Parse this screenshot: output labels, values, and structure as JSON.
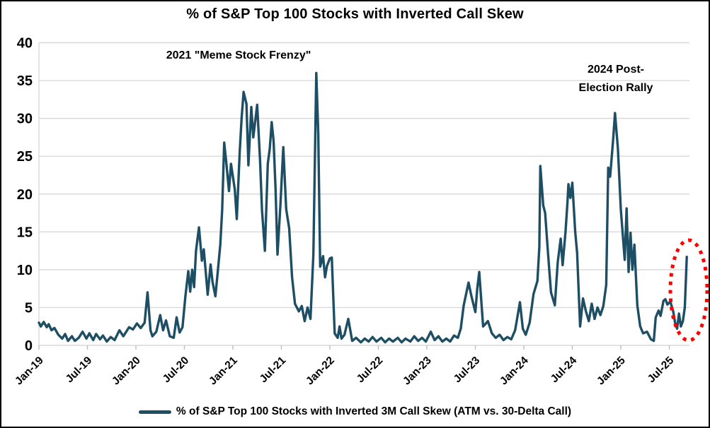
{
  "window": {
    "background": "#FFFFFF",
    "border_color": "#000000"
  },
  "chart_data": {
    "type": "line",
    "title": "% of S&P Top 100 Stocks with Inverted Call Skew",
    "xlabel": "",
    "ylabel": "",
    "ylim": [
      0,
      40
    ],
    "xlim": [
      2019.0,
      2025.71
    ],
    "grid": "horizontal",
    "legend_position": "bottom",
    "colors": {
      "line": "#1D4E63",
      "gridline": "#D9D9D9",
      "tick": "#BFBFBF",
      "text": "#000000",
      "annotation_circle": "#FF0000"
    },
    "y_ticks": [
      0,
      5,
      10,
      15,
      20,
      25,
      30,
      35,
      40
    ],
    "x_ticks": [
      2019.0,
      2019.5,
      2020.0,
      2020.5,
      2021.0,
      2021.5,
      2022.0,
      2022.5,
      2023.0,
      2023.5,
      2024.0,
      2024.5,
      2025.0,
      2025.5
    ],
    "x_ticklabels": [
      "Jan-19",
      "Jul-19",
      "Jan-20",
      "Jul-20",
      "Jan-21",
      "Jul-21",
      "Jan-22",
      "Jul-22",
      "Jan-23",
      "Jul-23",
      "Jan-24",
      "Jul-24",
      "Jan-25",
      "Jul-25"
    ],
    "annotations": [
      {
        "id": "meme-stock",
        "text": "2021 \"Meme Stock Frenzy\""
      },
      {
        "id": "post-election",
        "lines": [
          "2024 Post-",
          "Election Rally"
        ]
      },
      {
        "id": "current-spike-circle",
        "shape": "dotted-ellipse",
        "color": "#FF0000",
        "marks": "final Sep-2025 spike"
      }
    ],
    "series": [
      {
        "name": "% of S&P Top 100 Stocks with Inverted 3M Call Skew (ATM vs. 30-Delta Call)",
        "color": "#1D4E63",
        "points": [
          [
            2019.0,
            3.0
          ],
          [
            2019.02,
            2.5
          ],
          [
            2019.05,
            3.1
          ],
          [
            2019.08,
            2.4
          ],
          [
            2019.1,
            2.8
          ],
          [
            2019.13,
            2.0
          ],
          [
            2019.16,
            2.3
          ],
          [
            2019.2,
            1.4
          ],
          [
            2019.24,
            0.9
          ],
          [
            2019.27,
            1.5
          ],
          [
            2019.3,
            0.6
          ],
          [
            2019.34,
            1.2
          ],
          [
            2019.37,
            0.6
          ],
          [
            2019.41,
            1.0
          ],
          [
            2019.45,
            1.8
          ],
          [
            2019.49,
            0.9
          ],
          [
            2019.52,
            1.6
          ],
          [
            2019.56,
            0.7
          ],
          [
            2019.59,
            1.5
          ],
          [
            2019.63,
            0.8
          ],
          [
            2019.66,
            1.3
          ],
          [
            2019.7,
            0.5
          ],
          [
            2019.74,
            1.1
          ],
          [
            2019.78,
            0.7
          ],
          [
            2019.83,
            2.0
          ],
          [
            2019.87,
            1.2
          ],
          [
            2019.93,
            2.4
          ],
          [
            2019.97,
            2.1
          ],
          [
            2020.01,
            2.9
          ],
          [
            2020.05,
            2.3
          ],
          [
            2020.09,
            3.0
          ],
          [
            2020.12,
            7.0
          ],
          [
            2020.15,
            2.0
          ],
          [
            2020.17,
            1.2
          ],
          [
            2020.21,
            1.8
          ],
          [
            2020.25,
            4.0
          ],
          [
            2020.28,
            2.0
          ],
          [
            2020.31,
            3.3
          ],
          [
            2020.35,
            1.2
          ],
          [
            2020.39,
            1.0
          ],
          [
            2020.42,
            3.7
          ],
          [
            2020.45,
            1.7
          ],
          [
            2020.48,
            2.4
          ],
          [
            2020.51,
            6.5
          ],
          [
            2020.54,
            9.8
          ],
          [
            2020.56,
            7.1
          ],
          [
            2020.58,
            10.0
          ],
          [
            2020.6,
            7.7
          ],
          [
            2020.62,
            12.5
          ],
          [
            2020.65,
            15.6
          ],
          [
            2020.68,
            11.2
          ],
          [
            2020.7,
            12.7
          ],
          [
            2020.74,
            6.7
          ],
          [
            2020.77,
            10.7
          ],
          [
            2020.79,
            8.4
          ],
          [
            2020.82,
            6.5
          ],
          [
            2020.85,
            10.5
          ],
          [
            2020.87,
            13.3
          ],
          [
            2020.89,
            18.0
          ],
          [
            2020.91,
            26.8
          ],
          [
            2020.93,
            24.4
          ],
          [
            2020.96,
            20.4
          ],
          [
            2020.98,
            24.0
          ],
          [
            2021.02,
            20.6
          ],
          [
            2021.04,
            16.7
          ],
          [
            2021.07,
            25.5
          ],
          [
            2021.09,
            30.0
          ],
          [
            2021.11,
            33.5
          ],
          [
            2021.14,
            31.9
          ],
          [
            2021.16,
            23.8
          ],
          [
            2021.19,
            31.5
          ],
          [
            2021.21,
            27.5
          ],
          [
            2021.25,
            31.8
          ],
          [
            2021.28,
            24.4
          ],
          [
            2021.3,
            17.9
          ],
          [
            2021.33,
            12.5
          ],
          [
            2021.36,
            24.0
          ],
          [
            2021.38,
            26.0
          ],
          [
            2021.4,
            29.5
          ],
          [
            2021.42,
            27.0
          ],
          [
            2021.44,
            20.6
          ],
          [
            2021.46,
            12.0
          ],
          [
            2021.49,
            18.5
          ],
          [
            2021.52,
            26.2
          ],
          [
            2021.55,
            18.0
          ],
          [
            2021.58,
            15.5
          ],
          [
            2021.61,
            9.0
          ],
          [
            2021.64,
            5.5
          ],
          [
            2021.68,
            4.5
          ],
          [
            2021.71,
            5.2
          ],
          [
            2021.74,
            3.2
          ],
          [
            2021.77,
            5.0
          ],
          [
            2021.8,
            3.5
          ],
          [
            2021.83,
            12.0
          ],
          [
            2021.86,
            36.0
          ],
          [
            2021.88,
            28.0
          ],
          [
            2021.9,
            10.4
          ],
          [
            2021.93,
            11.8
          ],
          [
            2021.95,
            9.0
          ],
          [
            2021.97,
            10.5
          ],
          [
            2022.0,
            11.5
          ],
          [
            2022.02,
            11.6
          ],
          [
            2022.05,
            1.6
          ],
          [
            2022.08,
            1.0
          ],
          [
            2022.1,
            2.5
          ],
          [
            2022.12,
            0.9
          ],
          [
            2022.15,
            1.4
          ],
          [
            2022.19,
            3.5
          ],
          [
            2022.23,
            0.6
          ],
          [
            2022.27,
            1.0
          ],
          [
            2022.32,
            0.4
          ],
          [
            2022.36,
            0.9
          ],
          [
            2022.4,
            0.5
          ],
          [
            2022.44,
            1.1
          ],
          [
            2022.48,
            0.5
          ],
          [
            2022.53,
            1.0
          ],
          [
            2022.57,
            0.4
          ],
          [
            2022.61,
            0.9
          ],
          [
            2022.65,
            0.5
          ],
          [
            2022.7,
            1.0
          ],
          [
            2022.74,
            0.4
          ],
          [
            2022.78,
            0.9
          ],
          [
            2022.83,
            0.5
          ],
          [
            2022.87,
            1.2
          ],
          [
            2022.91,
            0.6
          ],
          [
            2022.95,
            1.0
          ],
          [
            2022.99,
            0.5
          ],
          [
            2023.04,
            1.8
          ],
          [
            2023.08,
            0.7
          ],
          [
            2023.12,
            1.2
          ],
          [
            2023.16,
            0.5
          ],
          [
            2023.2,
            0.9
          ],
          [
            2023.24,
            0.5
          ],
          [
            2023.28,
            1.3
          ],
          [
            2023.32,
            1.0
          ],
          [
            2023.35,
            2.2
          ],
          [
            2023.38,
            5.3
          ],
          [
            2023.43,
            8.3
          ],
          [
            2023.46,
            6.5
          ],
          [
            2023.5,
            4.4
          ],
          [
            2023.52,
            7.5
          ],
          [
            2023.54,
            9.7
          ],
          [
            2023.58,
            2.5
          ],
          [
            2023.63,
            3.2
          ],
          [
            2023.67,
            1.6
          ],
          [
            2023.71,
            1.0
          ],
          [
            2023.75,
            1.4
          ],
          [
            2023.79,
            0.7
          ],
          [
            2023.83,
            1.1
          ],
          [
            2023.87,
            0.8
          ],
          [
            2023.91,
            2.0
          ],
          [
            2023.96,
            5.7
          ],
          [
            2023.99,
            2.2
          ],
          [
            2024.02,
            1.4
          ],
          [
            2024.06,
            3.0
          ],
          [
            2024.1,
            6.8
          ],
          [
            2024.14,
            8.5
          ],
          [
            2024.16,
            13.0
          ],
          [
            2024.17,
            23.7
          ],
          [
            2024.2,
            18.5
          ],
          [
            2024.22,
            17.5
          ],
          [
            2024.25,
            12.0
          ],
          [
            2024.28,
            7.0
          ],
          [
            2024.32,
            5.3
          ],
          [
            2024.35,
            11.0
          ],
          [
            2024.38,
            14.1
          ],
          [
            2024.4,
            10.6
          ],
          [
            2024.43,
            15.0
          ],
          [
            2024.45,
            19.0
          ],
          [
            2024.46,
            21.3
          ],
          [
            2024.48,
            19.5
          ],
          [
            2024.5,
            21.5
          ],
          [
            2024.53,
            15.0
          ],
          [
            2024.55,
            12.2
          ],
          [
            2024.58,
            2.5
          ],
          [
            2024.61,
            6.2
          ],
          [
            2024.64,
            4.5
          ],
          [
            2024.67,
            3.2
          ],
          [
            2024.7,
            5.5
          ],
          [
            2024.73,
            3.5
          ],
          [
            2024.76,
            5.0
          ],
          [
            2024.79,
            4.0
          ],
          [
            2024.82,
            5.2
          ],
          [
            2024.85,
            8.0
          ],
          [
            2024.87,
            23.5
          ],
          [
            2024.89,
            22.3
          ],
          [
            2024.92,
            27.0
          ],
          [
            2024.94,
            30.7
          ],
          [
            2024.97,
            26.0
          ],
          [
            2025.0,
            18.0
          ],
          [
            2025.04,
            11.3
          ],
          [
            2025.06,
            18.1
          ],
          [
            2025.08,
            9.7
          ],
          [
            2025.1,
            14.9
          ],
          [
            2025.12,
            10.0
          ],
          [
            2025.14,
            13.3
          ],
          [
            2025.17,
            5.3
          ],
          [
            2025.2,
            2.5
          ],
          [
            2025.23,
            1.6
          ],
          [
            2025.27,
            1.8
          ],
          [
            2025.31,
            0.8
          ],
          [
            2025.34,
            0.6
          ],
          [
            2025.36,
            3.7
          ],
          [
            2025.39,
            4.6
          ],
          [
            2025.41,
            3.9
          ],
          [
            2025.44,
            5.9
          ],
          [
            2025.46,
            6.1
          ],
          [
            2025.48,
            5.4
          ],
          [
            2025.51,
            5.8
          ],
          [
            2025.54,
            4.5
          ],
          [
            2025.56,
            3.0
          ],
          [
            2025.58,
            2.2
          ],
          [
            2025.6,
            4.2
          ],
          [
            2025.62,
            2.5
          ],
          [
            2025.64,
            3.2
          ],
          [
            2025.66,
            5.0
          ],
          [
            2025.68,
            11.7
          ]
        ]
      }
    ]
  },
  "legend": {
    "swatch": "line-swatch"
  }
}
